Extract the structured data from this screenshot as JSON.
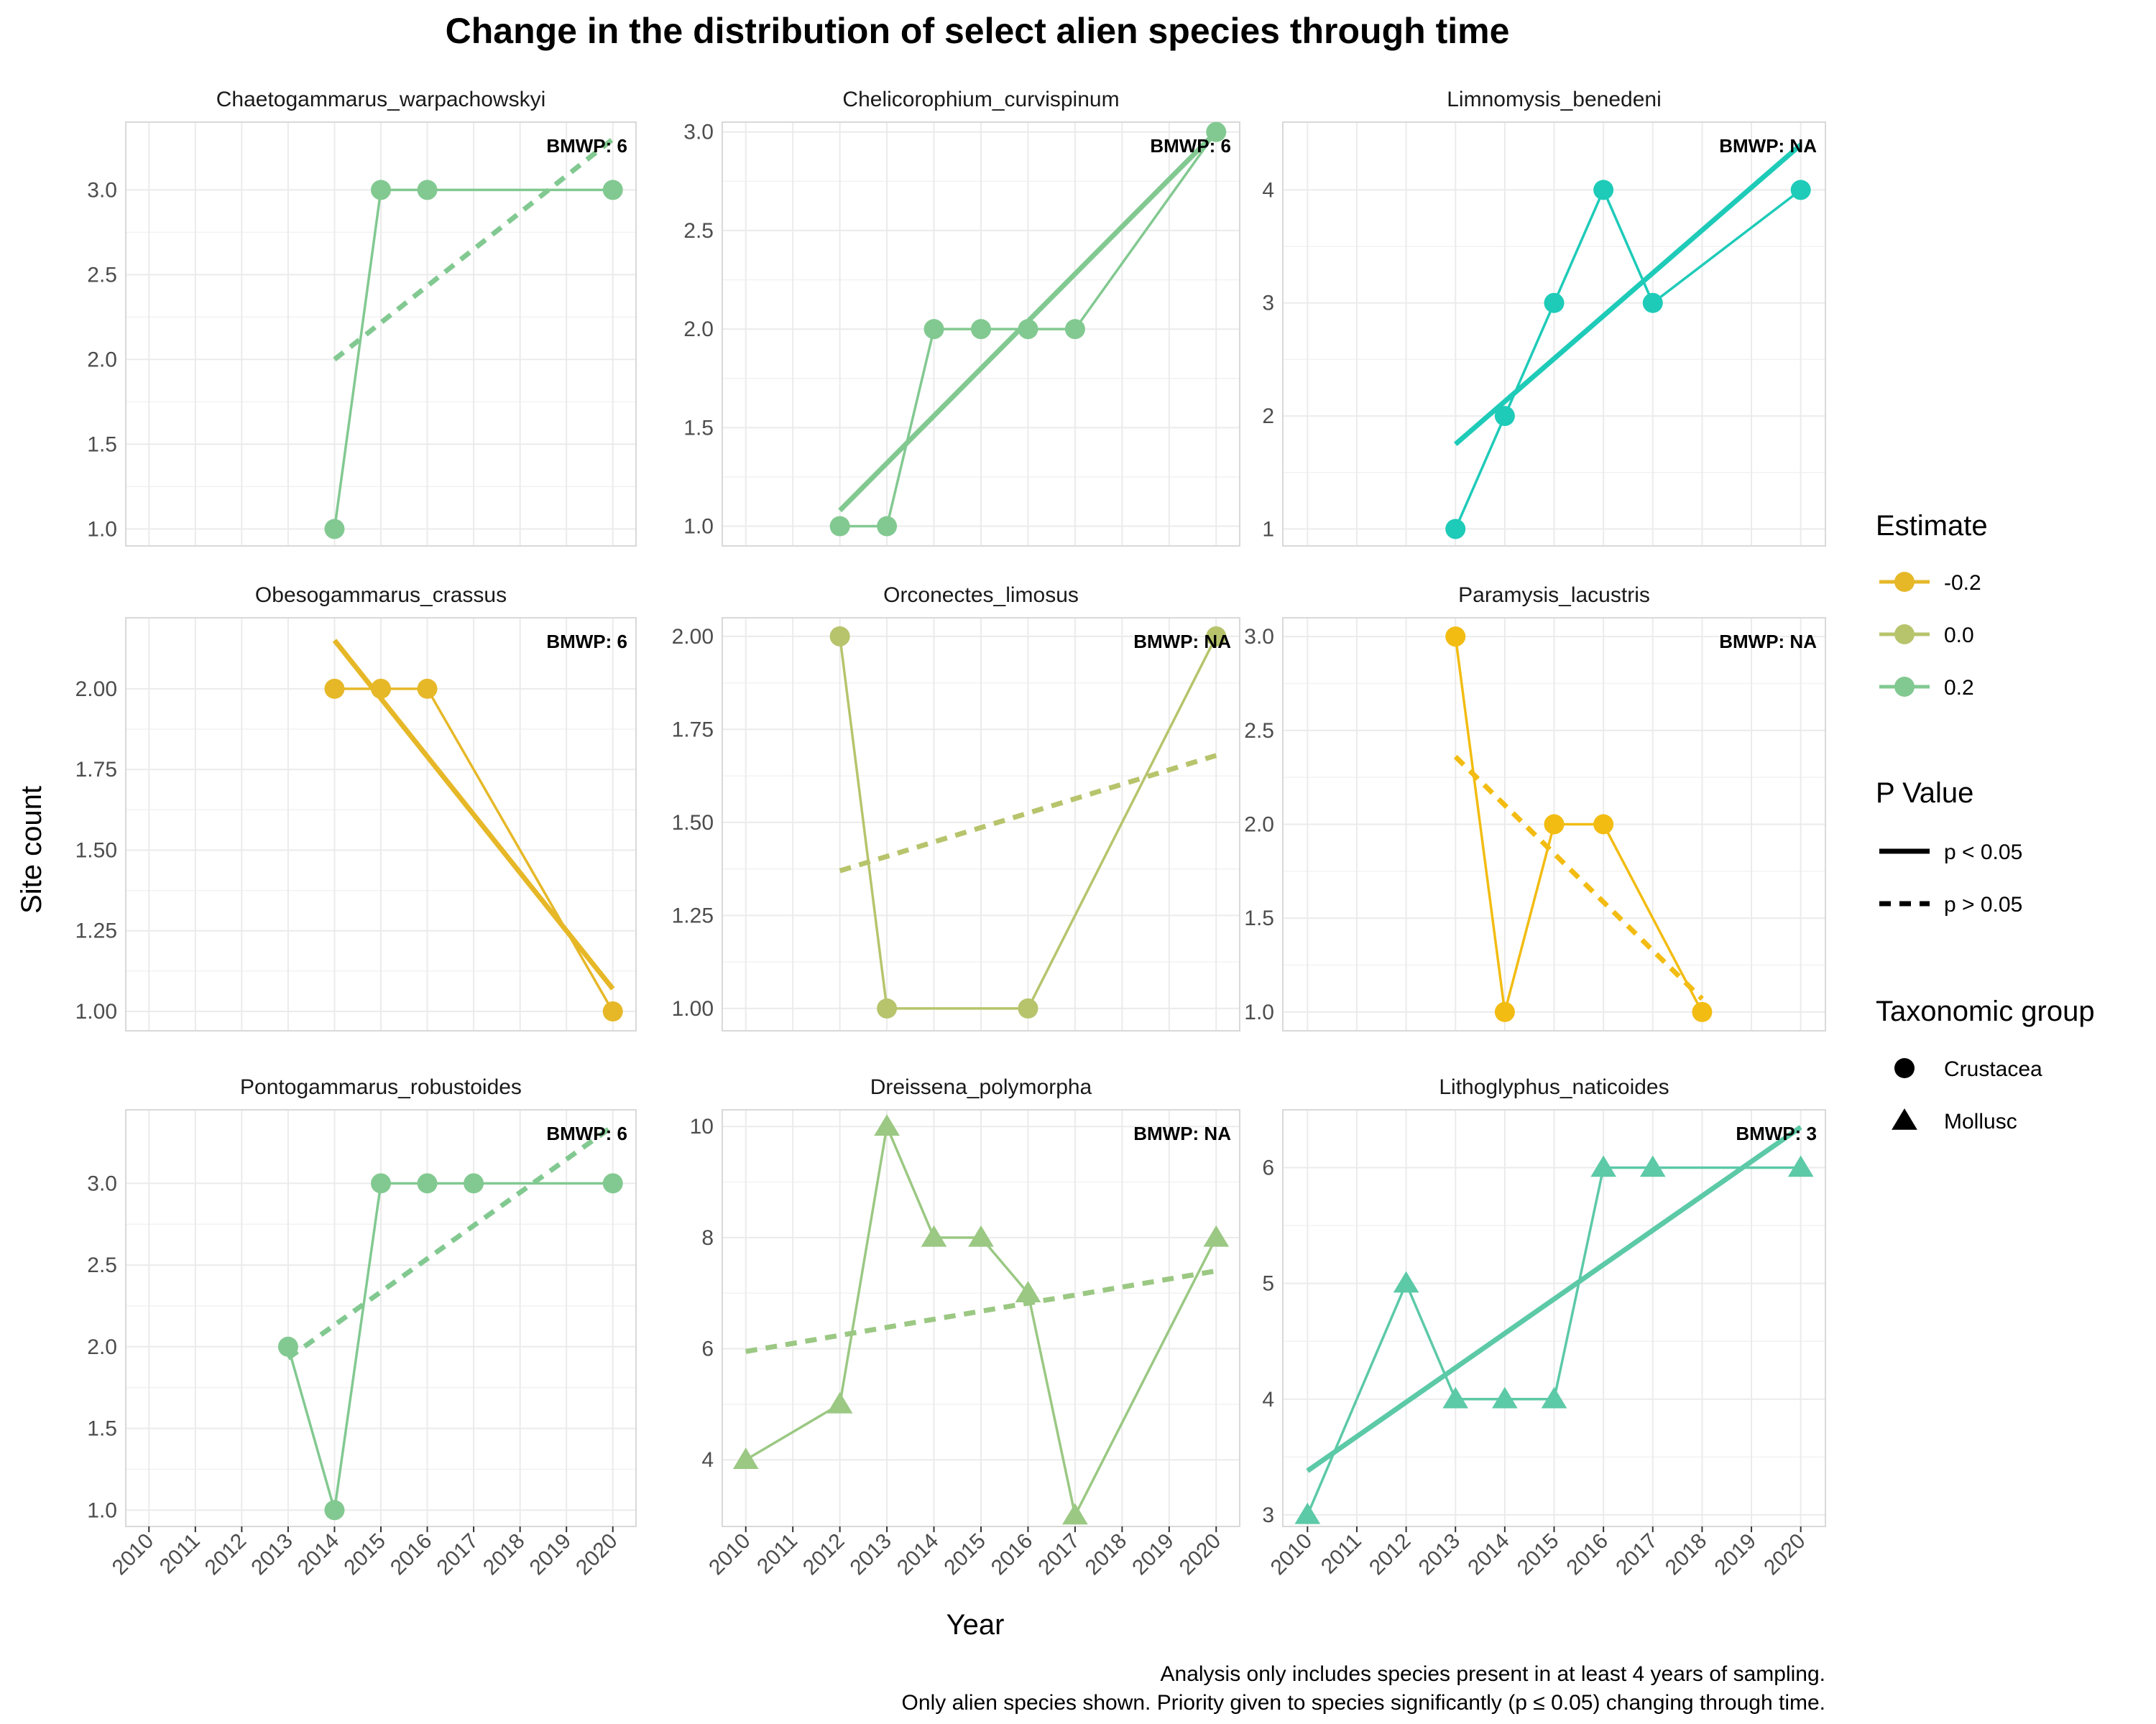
{
  "title": "Change in the distribution of select alien species through time",
  "xlabel": "Year",
  "ylabel": "Site count",
  "caption": [
    "Analysis only includes species present in at least 4 years of sampling.",
    "Only alien species shown. Priority given to species significantly (p ≤ 0.05) changing through time."
  ],
  "legend": {
    "estimate": {
      "title": "Estimate",
      "items": [
        {
          "label": "-0.2",
          "color": "#E6B828"
        },
        {
          "label": "0.0",
          "color": "#B7C46C"
        },
        {
          "label": "0.2",
          "color": "#82C991"
        }
      ]
    },
    "pvalue": {
      "title": "P Value",
      "items": [
        {
          "label": "p < 0.05",
          "style": "solid"
        },
        {
          "label": "p > 0.05",
          "style": "dashed"
        }
      ]
    },
    "taxon": {
      "title": "Taxonomic group",
      "items": [
        {
          "label": "Crustacea",
          "shape": "circle"
        },
        {
          "label": "Mollusc",
          "shape": "triangle"
        }
      ]
    }
  },
  "chart_data": [
    {
      "type": "line",
      "title": "Chaetogammarus_warpachowskyi",
      "bmwp": "BMWP: 6",
      "color": "#82C991",
      "shape": "circle",
      "x": [
        2014,
        2015,
        2016,
        2020
      ],
      "y": [
        1,
        3,
        3,
        3
      ],
      "trend": {
        "x": [
          2014,
          2020
        ],
        "y": [
          2.0,
          3.3
        ],
        "style": "dashed"
      },
      "xlim": [
        2009.5,
        2020.5
      ],
      "ylim": [
        0.9,
        3.4
      ],
      "yticks": [
        1.0,
        1.5,
        2.0,
        2.5,
        3.0
      ]
    },
    {
      "type": "line",
      "title": "Chelicorophium_curvispinum",
      "bmwp": "BMWP: 6",
      "color": "#82C991",
      "shape": "circle",
      "x": [
        2012,
        2013,
        2014,
        2015,
        2016,
        2017,
        2020
      ],
      "y": [
        1,
        1,
        2,
        2,
        2,
        2,
        3
      ],
      "trend": {
        "x": [
          2012,
          2020
        ],
        "y": [
          1.08,
          3.0
        ],
        "style": "solid"
      },
      "xlim": [
        2009.5,
        2020.5
      ],
      "ylim": [
        0.9,
        3.05
      ],
      "yticks": [
        1.0,
        1.5,
        2.0,
        2.5,
        3.0
      ]
    },
    {
      "type": "line",
      "title": "Limnomysis_benedeni",
      "bmwp": "BMWP: NA",
      "color": "#1ECBB8",
      "shape": "circle",
      "x": [
        2013,
        2014,
        2015,
        2016,
        2017,
        2020
      ],
      "y": [
        1,
        2,
        3,
        4,
        3,
        4
      ],
      "trend": {
        "x": [
          2013,
          2020
        ],
        "y": [
          1.75,
          4.4
        ],
        "style": "solid"
      },
      "xlim": [
        2009.5,
        2020.5
      ],
      "ylim": [
        0.85,
        4.6
      ],
      "yticks": [
        1,
        2,
        3,
        4
      ]
    },
    {
      "type": "line",
      "title": "Obesogammarus_crassus",
      "bmwp": "BMWP: 6",
      "color": "#E6B828",
      "shape": "circle",
      "x": [
        2014,
        2015,
        2016,
        2020
      ],
      "y": [
        2,
        2,
        2,
        1
      ],
      "trend": {
        "x": [
          2014,
          2020
        ],
        "y": [
          2.15,
          1.07
        ],
        "style": "solid"
      },
      "xlim": [
        2009.5,
        2020.5
      ],
      "ylim": [
        0.94,
        2.22
      ],
      "yticks": [
        1.0,
        1.25,
        1.5,
        1.75,
        2.0
      ]
    },
    {
      "type": "line",
      "title": "Orconectes_limosus",
      "bmwp": "BMWP: NA",
      "color": "#B7C46C",
      "shape": "circle",
      "x": [
        2012,
        2013,
        2016,
        2020
      ],
      "y": [
        2,
        1,
        1,
        2
      ],
      "trend": {
        "x": [
          2012,
          2020
        ],
        "y": [
          1.37,
          1.68
        ],
        "style": "dashed"
      },
      "xlim": [
        2009.5,
        2020.5
      ],
      "ylim": [
        0.94,
        2.05
      ],
      "yticks": [
        1.0,
        1.25,
        1.5,
        1.75,
        2.0
      ]
    },
    {
      "type": "line",
      "title": "Paramysis_lacustris",
      "bmwp": "BMWP: NA",
      "color": "#F2BC12",
      "shape": "circle",
      "x": [
        2013,
        2014,
        2015,
        2016,
        2018
      ],
      "y": [
        3,
        1,
        2,
        2,
        1
      ],
      "trend": {
        "x": [
          2013,
          2018
        ],
        "y": [
          2.36,
          1.07
        ],
        "style": "dashed"
      },
      "xlim": [
        2009.5,
        2020.5
      ],
      "ylim": [
        0.9,
        3.1
      ],
      "yticks": [
        1.0,
        1.5,
        2.0,
        2.5,
        3.0
      ]
    },
    {
      "type": "line",
      "title": "Pontogammarus_robustoides",
      "bmwp": "BMWP: 6",
      "color": "#82C991",
      "shape": "circle",
      "x": [
        2013,
        2014,
        2015,
        2016,
        2017,
        2020
      ],
      "y": [
        2,
        1,
        3,
        3,
        3,
        3
      ],
      "trend": {
        "x": [
          2013,
          2020
        ],
        "y": [
          1.93,
          3.35
        ],
        "style": "dashed"
      },
      "xlim": [
        2009.5,
        2020.5
      ],
      "ylim": [
        0.9,
        3.45
      ],
      "yticks": [
        1.0,
        1.5,
        2.0,
        2.5,
        3.0
      ]
    },
    {
      "type": "line",
      "title": "Dreissena_polymorpha",
      "bmwp": "BMWP: NA",
      "color": "#9BC883",
      "shape": "triangle",
      "x": [
        2010,
        2012,
        2013,
        2014,
        2015,
        2016,
        2017,
        2020
      ],
      "y": [
        4,
        5,
        10,
        8,
        8,
        7,
        3,
        8
      ],
      "trend": {
        "x": [
          2010,
          2020
        ],
        "y": [
          5.95,
          7.4
        ],
        "style": "dashed"
      },
      "xlim": [
        2009.5,
        2020.5
      ],
      "ylim": [
        2.8,
        10.3
      ],
      "yticks": [
        4,
        6,
        8,
        10
      ]
    },
    {
      "type": "line",
      "title": "Lithoglyphus_naticoides",
      "bmwp": "BMWP: 3",
      "color": "#5CC9A7",
      "shape": "triangle",
      "x": [
        2010,
        2012,
        2013,
        2014,
        2015,
        2016,
        2017,
        2020
      ],
      "y": [
        3,
        5,
        4,
        4,
        4,
        6,
        6,
        6
      ],
      "trend": {
        "x": [
          2010,
          2020
        ],
        "y": [
          3.38,
          6.35
        ],
        "style": "solid"
      },
      "xlim": [
        2009.5,
        2020.5
      ],
      "ylim": [
        2.9,
        6.5
      ],
      "yticks": [
        3,
        4,
        5,
        6
      ]
    }
  ],
  "xticks": [
    2010,
    2011,
    2012,
    2013,
    2014,
    2015,
    2016,
    2017,
    2018,
    2019,
    2020
  ]
}
